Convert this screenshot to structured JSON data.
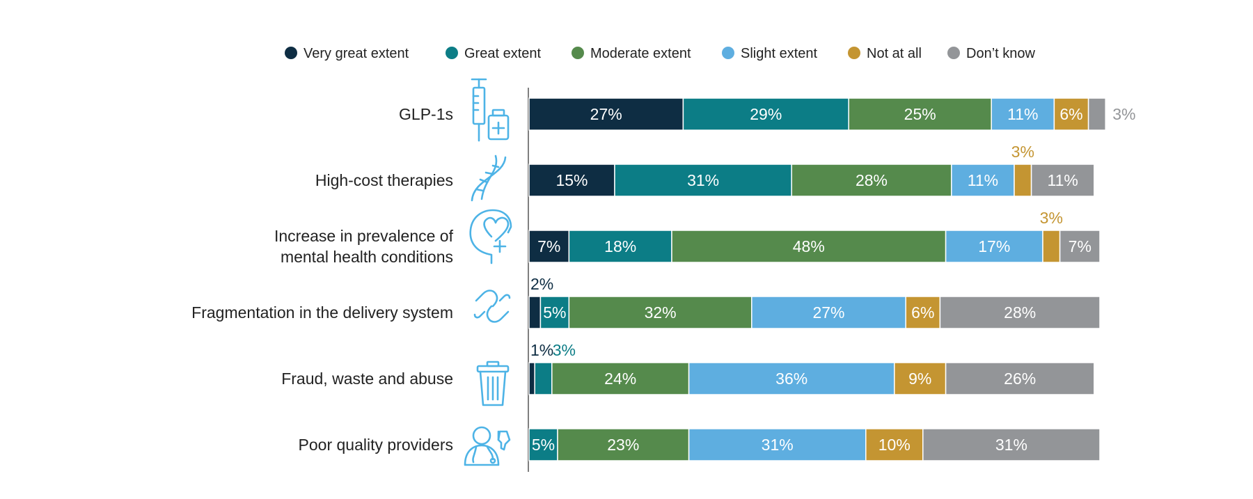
{
  "chart_data": {
    "type": "bar",
    "orientation": "horizontal",
    "stacked": true,
    "title": "",
    "xlabel": "",
    "ylabel": "",
    "xlim": [
      0,
      100
    ],
    "grid": false,
    "legend_position": "top",
    "categories": [
      "GLP-1s",
      "High-cost therapies",
      "Increase in prevalence of mental health conditions",
      "Fragmentation in the delivery system",
      "Fraud, waste and abuse",
      "Poor quality providers"
    ],
    "category_lines": [
      [
        "GLP-1s"
      ],
      [
        "High-cost therapies"
      ],
      [
        "Increase in prevalence of",
        "mental health conditions"
      ],
      [
        "Fragmentation in the delivery system"
      ],
      [
        "Fraud, waste and abuse"
      ],
      [
        "Poor quality providers"
      ]
    ],
    "category_icons": [
      "syringe-vial-icon",
      "dna-icon",
      "mental-health-head-icon",
      "broken-link-icon",
      "trash-can-icon",
      "doctor-thumbs-down-icon"
    ],
    "series": [
      {
        "name": "Very great extent",
        "color": "#0e2d43",
        "label_color": "#ffffff",
        "outside_color": "#0e2d43",
        "values": [
          27,
          15,
          7,
          2,
          1,
          0
        ],
        "labels": [
          "27%",
          "15%",
          "7%",
          "2%",
          "1%",
          ""
        ]
      },
      {
        "name": "Great extent",
        "color": "#0c7d86",
        "label_color": "#ffffff",
        "outside_color": "#0c7d86",
        "values": [
          29,
          31,
          18,
          5,
          3,
          5
        ],
        "labels": [
          "29%",
          "31%",
          "18%",
          "5%",
          "3%",
          "5%"
        ]
      },
      {
        "name": "Moderate extent",
        "color": "#558a4c",
        "label_color": "#ffffff",
        "outside_color": "#558a4c",
        "values": [
          25,
          28,
          48,
          32,
          24,
          23
        ],
        "labels": [
          "25%",
          "28%",
          "48%",
          "32%",
          "24%",
          "23%"
        ]
      },
      {
        "name": "Slight extent",
        "color": "#5eaee0",
        "label_color": "#ffffff",
        "outside_color": "#5eaee0",
        "values": [
          11,
          11,
          17,
          27,
          36,
          31
        ],
        "labels": [
          "11%",
          "11%",
          "17%",
          "27%",
          "36%",
          "31%"
        ]
      },
      {
        "name": "Not at all",
        "color": "#c49532",
        "label_color": "#ffffff",
        "outside_color": "#c49532",
        "values": [
          6,
          3,
          3,
          6,
          9,
          10
        ],
        "labels": [
          "6%",
          "3%",
          "3%",
          "6%",
          "9%",
          "10%"
        ]
      },
      {
        "name": "Don’t know",
        "color": "#939598",
        "label_color": "#ffffff",
        "outside_color": "#939598",
        "values": [
          3,
          11,
          7,
          28,
          26,
          31
        ],
        "labels": [
          "3%",
          "11%",
          "7%",
          "28%",
          "26%",
          "31%"
        ]
      }
    ]
  }
}
